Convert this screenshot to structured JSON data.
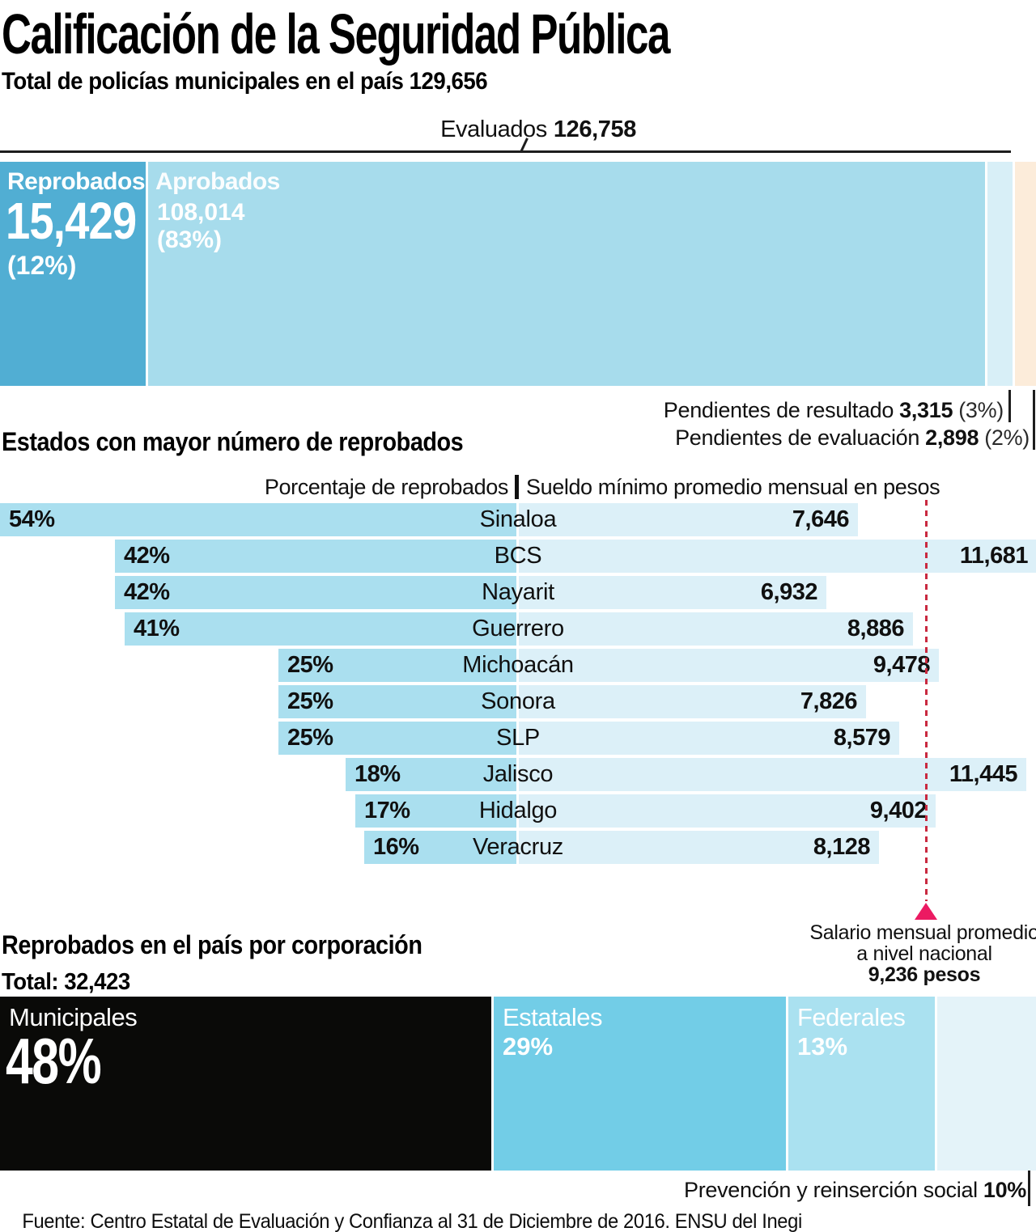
{
  "header": {
    "title": "Calificación de la Seguridad Pública",
    "subtitle": "Total de policías municipales en el país 129,656"
  },
  "chart_data": {
    "evaluation": {
      "type": "bar",
      "stacked": true,
      "orientation": "horizontal",
      "total_label": "Total de policías municipales en el país",
      "total": 129656,
      "bracket_label": "Evaluados",
      "bracket_value": 126758,
      "bracket_value_label": "126,758",
      "segments": [
        {
          "label": "Reprobados",
          "value": 15429,
          "value_label": "15,429",
          "pct": 12,
          "pct_label": "(12%)",
          "color": "#51aed3"
        },
        {
          "label": "Aprobados",
          "value": 108014,
          "value_label": "108,014",
          "pct": 83,
          "pct_label": "(83%)",
          "color": "#a7dcec"
        },
        {
          "label": "Pendientes de resultado",
          "value": 3315,
          "value_label": "3,315",
          "pct": 3,
          "pct_label": "(3%)",
          "color": "#d8eff7"
        },
        {
          "label": "Pendientes de evaluación",
          "value": 2898,
          "value_label": "2,898",
          "pct": 2,
          "pct_label": "(2%)",
          "color": "#fcecda"
        }
      ]
    },
    "states": {
      "type": "bar",
      "orientation": "horizontal",
      "heading": "Estados con mayor número de reprobados",
      "series": [
        "Porcentaje de reprobados",
        "Sueldo mínimo promedio mensual en pesos"
      ],
      "pct_axis_max": 54,
      "salary_axis_max": 11681,
      "bar_colors": {
        "pct": "#aadfef",
        "salary": "#dcf0f8"
      },
      "rows": [
        {
          "name": "Sinaloa",
          "pct": 54,
          "pct_label": "54%",
          "salary": 7646,
          "salary_label": "7,646"
        },
        {
          "name": "BCS",
          "pct": 42,
          "pct_label": "42%",
          "salary": 11681,
          "salary_label": "11,681"
        },
        {
          "name": "Nayarit",
          "pct": 42,
          "pct_label": "42%",
          "salary": 6932,
          "salary_label": "6,932"
        },
        {
          "name": "Guerrero",
          "pct": 41,
          "pct_label": "41%",
          "salary": 8886,
          "salary_label": "8,886"
        },
        {
          "name": "Michoacán",
          "pct": 25,
          "pct_label": "25%",
          "salary": 9478,
          "salary_label": "9,478"
        },
        {
          "name": "Sonora",
          "pct": 25,
          "pct_label": "25%",
          "salary": 7826,
          "salary_label": "7,826"
        },
        {
          "name": "SLP",
          "pct": 25,
          "pct_label": "25%",
          "salary": 8579,
          "salary_label": "8,579"
        },
        {
          "name": "Jalisco",
          "pct": 18,
          "pct_label": "18%",
          "salary": 11445,
          "salary_label": "11,445"
        },
        {
          "name": "Hidalgo",
          "pct": 17,
          "pct_label": "17%",
          "salary": 9402,
          "salary_label": "9,402"
        },
        {
          "name": "Veracruz",
          "pct": 16,
          "pct_label": "16%",
          "salary": 8128,
          "salary_label": "8,128"
        }
      ],
      "national_average": {
        "value": 9236,
        "label_line1": "Salario mensual promedio",
        "label_line2": "a nivel nacional",
        "value_label": "9,236 pesos",
        "line_color": "#c9293f",
        "marker_color": "#ec1a62"
      }
    },
    "corporation": {
      "type": "bar",
      "stacked": true,
      "orientation": "horizontal",
      "heading": "Reprobados en el país por corporación",
      "total": 32423,
      "total_label": "Total: 32,423",
      "segments": [
        {
          "label": "Municipales",
          "pct": 48,
          "pct_label": "48%",
          "color": "#0a0a08"
        },
        {
          "label": "Estatales",
          "pct": 29,
          "pct_label": "29%",
          "color": "#72cde7"
        },
        {
          "label": "Federales",
          "pct": 13,
          "pct_label": "13%",
          "color": "#aae1f0"
        },
        {
          "label": "Prevención y reinserción social",
          "pct": 10,
          "pct_label": "10%",
          "color": "#e4f3f9"
        }
      ]
    }
  },
  "footer": {
    "source": "Fuente: Centro Estatal de Evaluación y Confianza al 31 de Diciembre de 2016. ENSU del Inegi"
  }
}
